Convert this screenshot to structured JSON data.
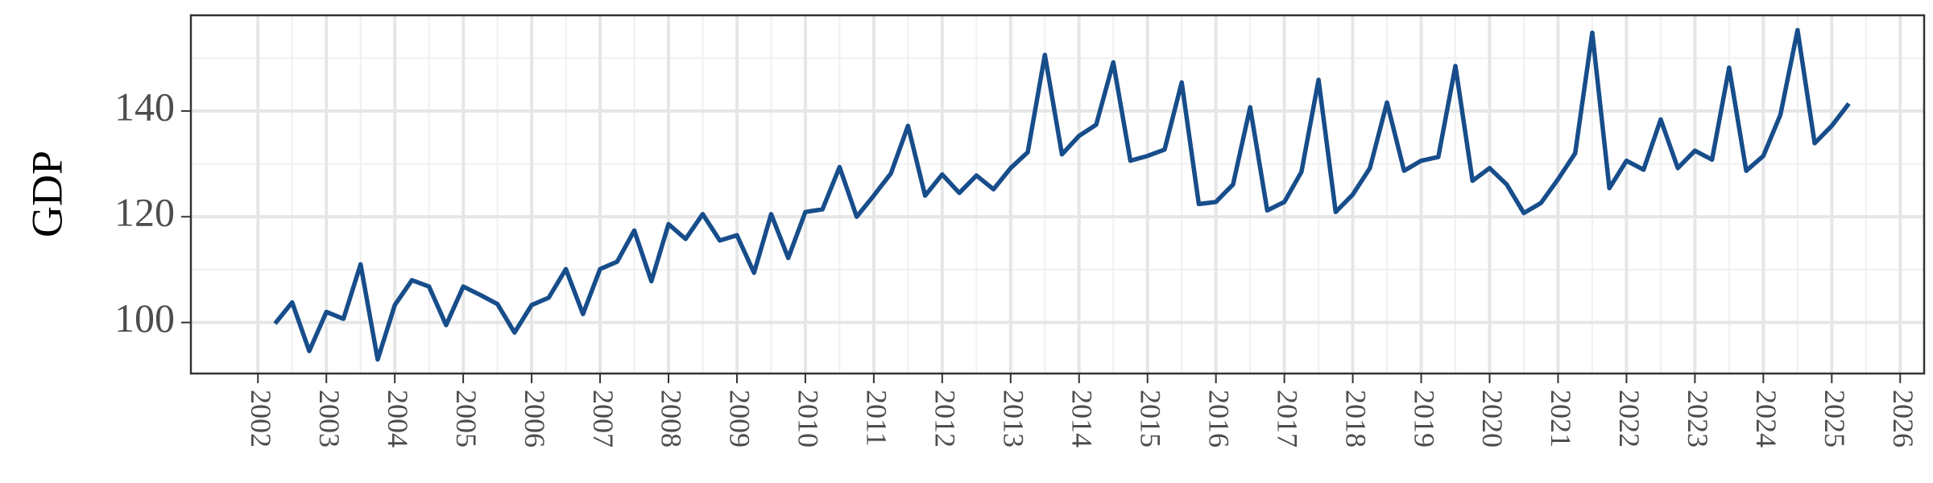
{
  "chart_data": {
    "type": "line",
    "y_label": "GDP",
    "x": [
      2002.25,
      2002.5,
      2002.75,
      2003,
      2003.25,
      2003.5,
      2003.75,
      2004,
      2004.25,
      2004.5,
      2004.75,
      2005,
      2005.25,
      2005.5,
      2005.75,
      2006,
      2006.25,
      2006.5,
      2006.75,
      2007,
      2007.25,
      2007.5,
      2007.75,
      2008,
      2008.25,
      2008.5,
      2008.75,
      2009,
      2009.25,
      2009.5,
      2009.75,
      2010,
      2010.25,
      2010.5,
      2010.75,
      2011,
      2011.25,
      2011.5,
      2011.75,
      2012,
      2012.25,
      2012.5,
      2012.75,
      2013,
      2013.25,
      2013.5,
      2013.75,
      2014,
      2014.25,
      2014.5,
      2014.75,
      2015,
      2015.25,
      2015.5,
      2015.75,
      2016,
      2016.25,
      2016.5,
      2016.75,
      2017,
      2017.25,
      2017.5,
      2017.75,
      2018,
      2018.25,
      2018.5,
      2018.75,
      2019,
      2019.25,
      2019.5,
      2019.75,
      2020,
      2020.25,
      2020.5,
      2020.75,
      2021,
      2021.25,
      2021.5,
      2021.75,
      2022,
      2022.25,
      2022.5,
      2022.75,
      2023,
      2023.25,
      2023.5,
      2023.75,
      2024,
      2024.25,
      2024.5,
      2024.75,
      2025,
      2025.25
    ],
    "series": [
      {
        "color": "#174d8a",
        "values": [
          99.8,
          103.8,
          94.6,
          102,
          100.7,
          111,
          93,
          103.3,
          108,
          106.8,
          99.5,
          106.8,
          105.2,
          103.5,
          98.1,
          103.3,
          104.7,
          110.1,
          101.6,
          110.1,
          111.5,
          117.4,
          107.8,
          118.6,
          115.8,
          120.5,
          115.5,
          116.5,
          109.4,
          120.5,
          112.2,
          120.9,
          121.4,
          129.4,
          120,
          124,
          128.2,
          137.2,
          124,
          128,
          124.5,
          127.8,
          125.2,
          129.2,
          132.2,
          150.6,
          131.8,
          135.3,
          137.4,
          149.2,
          130.6,
          131.5,
          132.7,
          145.4,
          122.4,
          122.8,
          126.1,
          140.7,
          121.2,
          122.8,
          128.5,
          145.9,
          120.9,
          124.2,
          129.2,
          141.6,
          128.7,
          130.6,
          131.3,
          148.5,
          126.8,
          129.2,
          126.1,
          120.7,
          122.6,
          127.1,
          132,
          154.8,
          125.4,
          130.6,
          128.9,
          138.4,
          129.2,
          132.5,
          130.8,
          148.2,
          128.7,
          131.5,
          139.3,
          155.3,
          133.9,
          137.2,
          141.4
        ]
      }
    ],
    "xlim": [
      2001.02,
      2026.35
    ],
    "ylim": [
      90.35,
      158.1
    ],
    "xticks": [
      2002,
      2003,
      2004,
      2005,
      2006,
      2007,
      2008,
      2009,
      2010,
      2011,
      2012,
      2013,
      2014,
      2015,
      2016,
      2017,
      2018,
      2019,
      2020,
      2021,
      2022,
      2023,
      2024,
      2025,
      2026
    ],
    "yticks": [
      100,
      120,
      140
    ],
    "grid": true,
    "minor_grid": true
  }
}
